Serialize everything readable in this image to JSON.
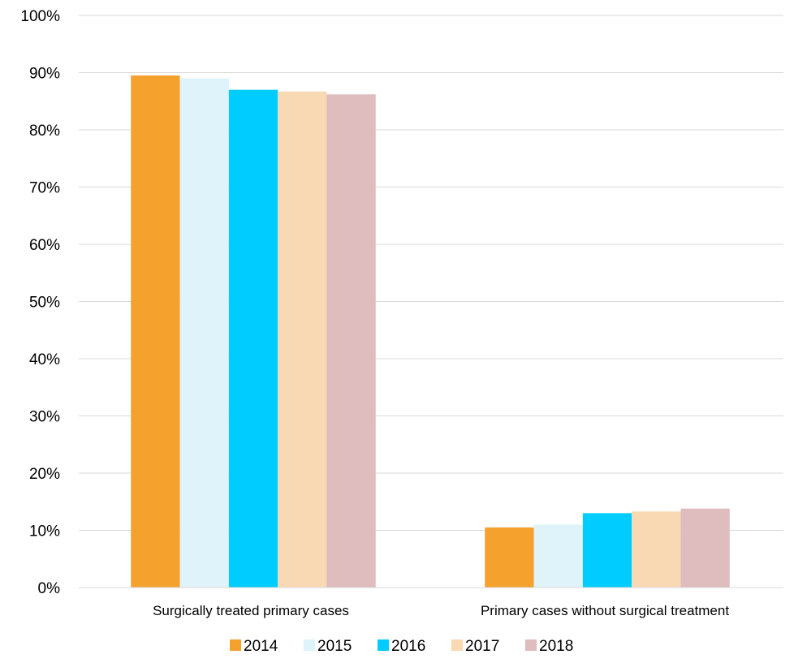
{
  "chart_data": {
    "type": "bar",
    "title": "",
    "xlabel": "",
    "ylabel": "",
    "categories": [
      "Surgically treated primary cases",
      "Primary cases without surgical treatment"
    ],
    "ylim": [
      0,
      100
    ],
    "y_tick_step": 10,
    "y_tick_labels": [
      "0%",
      "10%",
      "20%",
      "30%",
      "40%",
      "50%",
      "60%",
      "70%",
      "80%",
      "90%",
      "100%"
    ],
    "grid": true,
    "legend_position": "bottom",
    "series": [
      {
        "name": "2014",
        "color": "#F4A12D",
        "values": [
          89.5,
          10.5
        ]
      },
      {
        "name": "2015",
        "color": "#DFF3FA",
        "values": [
          89.0,
          11.0
        ]
      },
      {
        "name": "2016",
        "color": "#00CCFF",
        "values": [
          87.0,
          13.0
        ]
      },
      {
        "name": "2017",
        "color": "#F9D9B4",
        "values": [
          86.7,
          13.3
        ]
      },
      {
        "name": "2018",
        "color": "#DFBCBD",
        "values": [
          86.2,
          13.8
        ]
      }
    ]
  }
}
